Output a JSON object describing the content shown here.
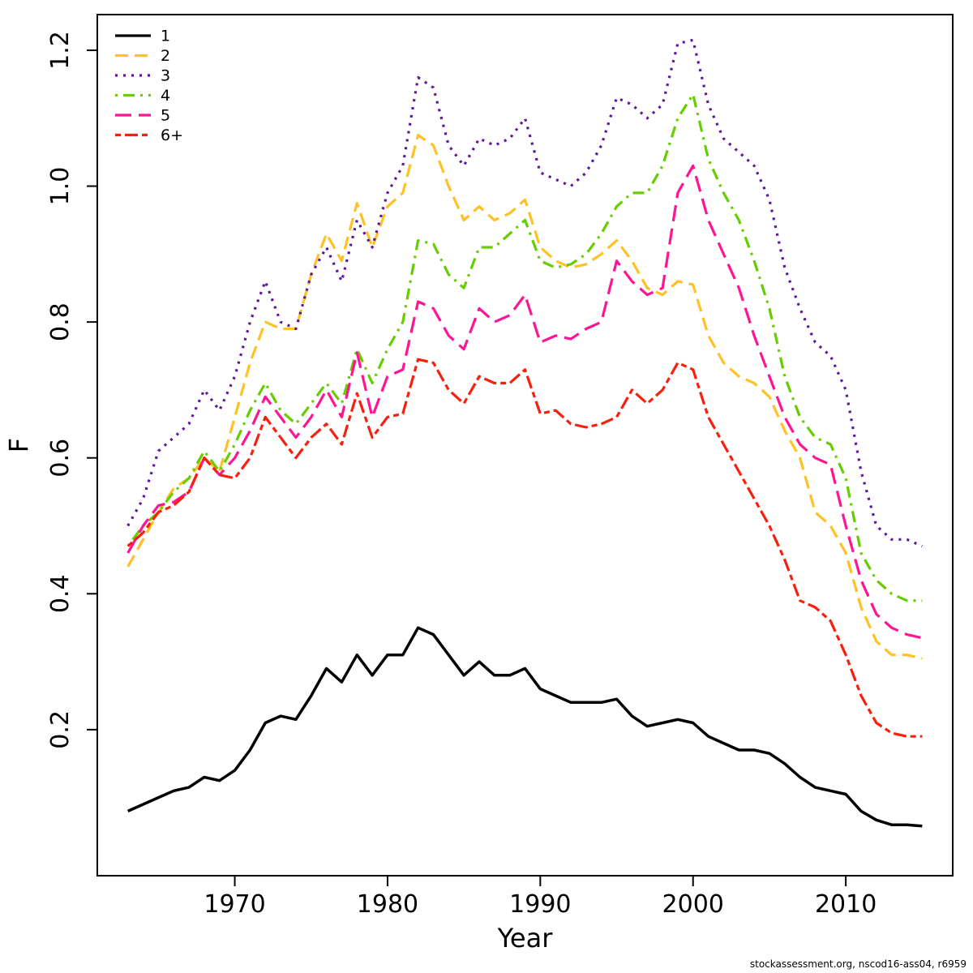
{
  "chart_data": {
    "type": "line",
    "title": "",
    "xlabel": "Year",
    "ylabel": "F",
    "x_start": 1963,
    "x_end": 2015,
    "xlim": [
      1961,
      2017
    ],
    "ylim": [
      -0.015,
      1.2525
    ],
    "xticks": [
      1970,
      1980,
      1990,
      2000,
      2010
    ],
    "yticks": [
      0.2,
      0.4,
      0.6,
      0.8,
      1.0,
      1.2
    ],
    "grid": false,
    "legend_position": "top-left",
    "series": [
      {
        "name": "1",
        "color": "#000000",
        "linestyle": "solid",
        "values": [
          0.08,
          0.09,
          0.1,
          0.11,
          0.115,
          0.13,
          0.125,
          0.14,
          0.17,
          0.21,
          0.22,
          0.215,
          0.25,
          0.29,
          0.27,
          0.31,
          0.28,
          0.31,
          0.31,
          0.35,
          0.34,
          0.31,
          0.28,
          0.3,
          0.28,
          0.28,
          0.29,
          0.26,
          0.25,
          0.24,
          0.24,
          0.24,
          0.245,
          0.22,
          0.205,
          0.21,
          0.215,
          0.21,
          0.19,
          0.18,
          0.17,
          0.17,
          0.165,
          0.15,
          0.13,
          0.115,
          0.11,
          0.105,
          0.08,
          0.067,
          0.06,
          0.06,
          0.058
        ]
      },
      {
        "name": "2",
        "color": "#FFC125",
        "linestyle": "dashed",
        "values": [
          0.44,
          0.48,
          0.52,
          0.555,
          0.57,
          0.6,
          0.58,
          0.66,
          0.74,
          0.8,
          0.79,
          0.79,
          0.87,
          0.93,
          0.89,
          0.975,
          0.91,
          0.97,
          0.99,
          1.075,
          1.06,
          1.0,
          0.95,
          0.97,
          0.95,
          0.96,
          0.98,
          0.91,
          0.89,
          0.88,
          0.885,
          0.9,
          0.92,
          0.89,
          0.85,
          0.84,
          0.86,
          0.855,
          0.78,
          0.74,
          0.72,
          0.71,
          0.69,
          0.64,
          0.6,
          0.52,
          0.5,
          0.46,
          0.38,
          0.33,
          0.31,
          0.31,
          0.305
        ]
      },
      {
        "name": "3",
        "color": "#5A189A",
        "linestyle": "dotted",
        "values": [
          0.5,
          0.54,
          0.61,
          0.63,
          0.65,
          0.7,
          0.67,
          0.72,
          0.8,
          0.86,
          0.8,
          0.79,
          0.87,
          0.91,
          0.86,
          0.95,
          0.91,
          0.99,
          1.03,
          1.16,
          1.145,
          1.06,
          1.03,
          1.07,
          1.06,
          1.07,
          1.1,
          1.02,
          1.01,
          1.0,
          1.02,
          1.06,
          1.13,
          1.12,
          1.1,
          1.12,
          1.21,
          1.215,
          1.12,
          1.07,
          1.05,
          1.03,
          0.98,
          0.88,
          0.82,
          0.77,
          0.75,
          0.7,
          0.58,
          0.5,
          0.48,
          0.48,
          0.47
        ]
      },
      {
        "name": "4",
        "color": "#66CD00",
        "linestyle": "dotdash",
        "values": [
          0.47,
          0.5,
          0.52,
          0.55,
          0.57,
          0.61,
          0.58,
          0.62,
          0.67,
          0.71,
          0.67,
          0.65,
          0.68,
          0.71,
          0.68,
          0.76,
          0.71,
          0.76,
          0.8,
          0.92,
          0.915,
          0.87,
          0.85,
          0.91,
          0.91,
          0.93,
          0.95,
          0.89,
          0.88,
          0.885,
          0.9,
          0.93,
          0.97,
          0.99,
          0.99,
          1.03,
          1.1,
          1.135,
          1.04,
          0.99,
          0.95,
          0.89,
          0.82,
          0.72,
          0.66,
          0.63,
          0.62,
          0.57,
          0.46,
          0.42,
          0.4,
          0.39,
          0.39
        ]
      },
      {
        "name": "5",
        "color": "#FF1493",
        "linestyle": "longdash",
        "values": [
          0.46,
          0.5,
          0.53,
          0.535,
          0.55,
          0.6,
          0.575,
          0.6,
          0.64,
          0.69,
          0.66,
          0.63,
          0.66,
          0.7,
          0.66,
          0.755,
          0.66,
          0.72,
          0.73,
          0.83,
          0.82,
          0.78,
          0.76,
          0.82,
          0.8,
          0.81,
          0.84,
          0.77,
          0.78,
          0.775,
          0.79,
          0.8,
          0.89,
          0.86,
          0.84,
          0.85,
          0.99,
          1.03,
          0.95,
          0.9,
          0.85,
          0.78,
          0.72,
          0.66,
          0.62,
          0.6,
          0.59,
          0.5,
          0.42,
          0.37,
          0.35,
          0.34,
          0.335
        ]
      },
      {
        "name": "6+",
        "color": "#FA1E0D",
        "linestyle": "twodash",
        "values": [
          0.47,
          0.49,
          0.52,
          0.53,
          0.55,
          0.6,
          0.575,
          0.57,
          0.6,
          0.66,
          0.63,
          0.6,
          0.63,
          0.65,
          0.62,
          0.695,
          0.63,
          0.66,
          0.665,
          0.745,
          0.74,
          0.7,
          0.68,
          0.72,
          0.71,
          0.71,
          0.73,
          0.665,
          0.67,
          0.65,
          0.645,
          0.65,
          0.66,
          0.7,
          0.68,
          0.7,
          0.74,
          0.73,
          0.66,
          0.62,
          0.58,
          0.54,
          0.5,
          0.45,
          0.39,
          0.38,
          0.36,
          0.31,
          0.25,
          0.21,
          0.195,
          0.19,
          0.19
        ]
      }
    ]
  },
  "footer": {
    "attribution": "stockassessment.org, nscod16-ass04, r6959"
  }
}
